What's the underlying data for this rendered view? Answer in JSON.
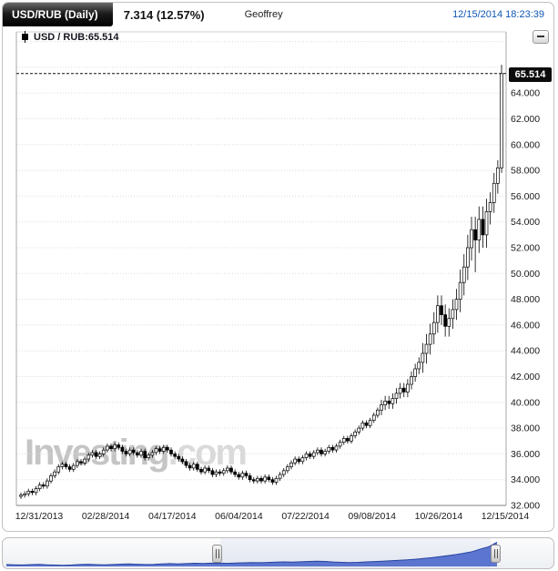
{
  "header": {
    "symbol_badge": "USD/RUB (Daily)",
    "change": "7.314 (12.57%)",
    "user": "Geoffrey",
    "timestamp": "12/15/2014 18:23:39"
  },
  "legend": {
    "label": "USD / RUB:65.514"
  },
  "price_flag": "65.514",
  "watermark": {
    "main": "Investing",
    "suffix": ".com"
  },
  "chart_data": {
    "type": "candlestick",
    "symbol": "USD/RUB",
    "interval": "Daily",
    "title": "USD/RUB Daily exchange rate",
    "last_price": 65.514,
    "change_text": "7.314 (12.57%)",
    "ylim": [
      32,
      68.7
    ],
    "grid": "horizontal-dotted",
    "legend_position": "top-left",
    "y_tick_labels": [
      "64.000",
      "62.000",
      "60.000",
      "58.000",
      "56.000",
      "54.000",
      "52.000",
      "50.000",
      "48.000",
      "46.000",
      "44.000",
      "42.000",
      "40.000",
      "38.000",
      "36.000",
      "34.000",
      "32.000"
    ],
    "x_labels": [
      "12/31/2013",
      "02/28/2014",
      "04/17/2014",
      "06/04/2014",
      "07/22/2014",
      "09/08/2014",
      "10/26/2014",
      "12/15/2014"
    ],
    "candles": [
      [
        32.7,
        33,
        32.5,
        32.8
      ],
      [
        32.8,
        33.1,
        32.6,
        32.9
      ],
      [
        32.9,
        33.3,
        32.7,
        33.1
      ],
      [
        33.1,
        33.3,
        32.8,
        33
      ],
      [
        33,
        33.5,
        32.8,
        33.3
      ],
      [
        33.3,
        33.8,
        33.1,
        33.6
      ],
      [
        33.6,
        33.8,
        33.3,
        33.5
      ],
      [
        33.5,
        34.1,
        33.3,
        33.9
      ],
      [
        33.9,
        34.5,
        33.7,
        34.3
      ],
      [
        34.3,
        34.8,
        34.1,
        34.6
      ],
      [
        34.6,
        35.2,
        34.4,
        35
      ],
      [
        35,
        35.4,
        34.8,
        35.2
      ],
      [
        35.2,
        35.4,
        34.8,
        35
      ],
      [
        35,
        35.2,
        34.6,
        34.8
      ],
      [
        34.8,
        35.3,
        34.6,
        35.1
      ],
      [
        35.1,
        35.6,
        34.9,
        35.4
      ],
      [
        35.4,
        35.6,
        35.1,
        35.3
      ],
      [
        35.3,
        35.8,
        35.1,
        35.6
      ],
      [
        35.6,
        36.1,
        35.4,
        35.9
      ],
      [
        35.9,
        36.3,
        35.7,
        36.1
      ],
      [
        36.1,
        36.3,
        35.6,
        35.8
      ],
      [
        35.8,
        36.2,
        35.6,
        36
      ],
      [
        36,
        36.5,
        35.8,
        36.3
      ],
      [
        36.3,
        36.8,
        36.1,
        36.6
      ],
      [
        36.6,
        36.8,
        36.2,
        36.4
      ],
      [
        36.4,
        36.9,
        36.2,
        36.7
      ],
      [
        36.7,
        36.9,
        36.3,
        36.5
      ],
      [
        36.5,
        36.7,
        36,
        36.2
      ],
      [
        36.2,
        36.4,
        35.8,
        36
      ],
      [
        36,
        36.5,
        35.8,
        36.3
      ],
      [
        36.3,
        36.5,
        35.9,
        36.1
      ],
      [
        36.1,
        36.3,
        35.7,
        35.9
      ],
      [
        35.9,
        36.4,
        35.7,
        36.2
      ],
      [
        36.2,
        36.4,
        35.5,
        35.7
      ],
      [
        35.7,
        36.1,
        35.5,
        35.9
      ],
      [
        35.9,
        36.3,
        35.7,
        36.1
      ],
      [
        36.1,
        36.6,
        35.9,
        36.4
      ],
      [
        36.4,
        36.6,
        36,
        36.2
      ],
      [
        36.2,
        36.7,
        36,
        36.5
      ],
      [
        36.5,
        36.7,
        36.1,
        36.3
      ],
      [
        36.3,
        36.5,
        35.8,
        36
      ],
      [
        36,
        36.2,
        35.6,
        35.8
      ],
      [
        35.8,
        36,
        35.4,
        35.6
      ],
      [
        35.6,
        35.8,
        35.2,
        35.4
      ],
      [
        35.4,
        35.6,
        34.9,
        35.1
      ],
      [
        35.1,
        35.3,
        34.7,
        34.9
      ],
      [
        34.9,
        35.4,
        34.7,
        35.2
      ],
      [
        35.2,
        35.4,
        34.6,
        34.8
      ],
      [
        34.8,
        35,
        34.4,
        34.6
      ],
      [
        34.6,
        35.1,
        34.4,
        34.9
      ],
      [
        34.9,
        35.1,
        34.5,
        34.7
      ],
      [
        34.7,
        34.9,
        34.2,
        34.4
      ],
      [
        34.4,
        34.8,
        34.2,
        34.6
      ],
      [
        34.6,
        34.8,
        34.3,
        34.5
      ],
      [
        34.5,
        34.9,
        34.3,
        34.7
      ],
      [
        34.7,
        35.1,
        34.5,
        34.9
      ],
      [
        34.9,
        35.1,
        34.4,
        34.6
      ],
      [
        34.6,
        34.8,
        34.2,
        34.4
      ],
      [
        34.4,
        34.6,
        34,
        34.2
      ],
      [
        34.2,
        34.7,
        34,
        34.5
      ],
      [
        34.5,
        34.7,
        34.1,
        34.3
      ],
      [
        34.3,
        34.5,
        33.8,
        34
      ],
      [
        34,
        34.2,
        33.7,
        33.9
      ],
      [
        33.9,
        34.3,
        33.7,
        34.1
      ],
      [
        34.1,
        34.3,
        33.7,
        33.9
      ],
      [
        33.9,
        34.4,
        33.7,
        34.2
      ],
      [
        34.2,
        34.4,
        33.8,
        34
      ],
      [
        34,
        34.2,
        33.6,
        33.8
      ],
      [
        33.8,
        34.3,
        33.6,
        34.1
      ],
      [
        34.1,
        34.6,
        33.9,
        34.4
      ],
      [
        34.4,
        34.9,
        34.2,
        34.7
      ],
      [
        34.7,
        35.2,
        34.5,
        35
      ],
      [
        35,
        35.5,
        34.8,
        35.3
      ],
      [
        35.3,
        35.8,
        35.1,
        35.6
      ],
      [
        35.6,
        35.8,
        35.2,
        35.4
      ],
      [
        35.4,
        35.9,
        35.2,
        35.7
      ],
      [
        35.7,
        36.2,
        35.5,
        36
      ],
      [
        36,
        36.2,
        35.6,
        35.8
      ],
      [
        35.8,
        36.3,
        35.6,
        36.1
      ],
      [
        36.1,
        36.5,
        35.9,
        36.3
      ],
      [
        36.3,
        36.5,
        35.8,
        36
      ],
      [
        36,
        36.4,
        35.8,
        36.2
      ],
      [
        36.2,
        36.7,
        36,
        36.5
      ],
      [
        36.5,
        36.7,
        36.1,
        36.3
      ],
      [
        36.3,
        36.8,
        36.1,
        36.6
      ],
      [
        36.6,
        37.1,
        36.4,
        36.9
      ],
      [
        36.9,
        37.4,
        36.7,
        37.2
      ],
      [
        37.2,
        37.4,
        36.8,
        37
      ],
      [
        37,
        37.6,
        36.8,
        37.4
      ],
      [
        37.4,
        37.9,
        37.2,
        37.7
      ],
      [
        37.7,
        38.2,
        37.5,
        38
      ],
      [
        38,
        38.6,
        37.8,
        38.4
      ],
      [
        38.4,
        38.6,
        38,
        38.2
      ],
      [
        38.2,
        38.8,
        38,
        38.6
      ],
      [
        38.6,
        39.2,
        38.4,
        39
      ],
      [
        39,
        39.6,
        38.8,
        39.4
      ],
      [
        39.4,
        40.2,
        39,
        39.8
      ],
      [
        39.8,
        40.5,
        39.4,
        40.1
      ],
      [
        40.1,
        40.5,
        39.5,
        39.9
      ],
      [
        39.9,
        40.7,
        39.5,
        40.3
      ],
      [
        40.3,
        41.1,
        39.9,
        40.7
      ],
      [
        40.7,
        41.5,
        40.3,
        41.1
      ],
      [
        41.1,
        41.5,
        40.4,
        40.8
      ],
      [
        40.8,
        41.8,
        40.4,
        41.4
      ],
      [
        41.4,
        42.4,
        41,
        42
      ],
      [
        42,
        43,
        41.6,
        42.6
      ],
      [
        42.6,
        43.5,
        42.2,
        43.1
      ],
      [
        43.1,
        44.6,
        42.3,
        43.8
      ],
      [
        43.8,
        45.3,
        43,
        44.5
      ],
      [
        44.5,
        46.1,
        43.7,
        45.3
      ],
      [
        45.3,
        47,
        44.5,
        46.2
      ],
      [
        46.2,
        48.3,
        45.4,
        47.5
      ],
      [
        47.5,
        48.3,
        46,
        46.8
      ],
      [
        46.8,
        47.6,
        45.1,
        45.9
      ],
      [
        45.9,
        47.3,
        45.1,
        46.5
      ],
      [
        46.5,
        48,
        45.7,
        47.2
      ],
      [
        47.2,
        48.8,
        46.4,
        48
      ],
      [
        48,
        50.3,
        47,
        49.3
      ],
      [
        49.3,
        51.5,
        48.3,
        50.5
      ],
      [
        50.5,
        53,
        49.5,
        52
      ],
      [
        52,
        54.4,
        51,
        53.4
      ],
      [
        53.4,
        54.4,
        50.1,
        52.6
      ],
      [
        52.6,
        55.2,
        51.6,
        54.2
      ],
      [
        54.2,
        55.2,
        52,
        53
      ],
      [
        53,
        55.8,
        52,
        54.8
      ],
      [
        54.8,
        56.3,
        53.8,
        55.5
      ],
      [
        55.5,
        57.8,
        54.7,
        57
      ],
      [
        57,
        58.8,
        56.2,
        58.2
      ],
      [
        58.2,
        66.2,
        57.8,
        65.514
      ]
    ],
    "navigator": {
      "type": "area",
      "values": [
        31,
        30.5,
        30.2,
        30.8,
        31.2,
        30.6,
        30.1,
        29.8,
        30.3,
        30.9,
        31.4,
        30.8,
        30.4,
        30.9,
        31.5,
        32,
        31.4,
        30.9,
        31.3,
        31.8,
        32.3,
        31.9,
        32.4,
        32.9,
        32.5,
        33,
        33.4,
        32.8,
        33.2,
        33.6,
        34.1,
        33.7,
        34.2,
        34.6,
        35.1,
        34.7,
        35.2,
        35.7,
        36.2,
        35.8,
        34.9,
        34.3,
        33.9,
        34.4,
        35,
        35.6,
        36.1,
        36.7,
        37.4,
        38.2,
        39.1,
        40.2,
        41.5,
        43,
        44.8,
        46.5,
        48.5,
        51,
        55,
        58.5,
        65.5
      ]
    },
    "colors": {
      "candle_outline": "#000000",
      "down_fill": "#000000",
      "up_fill": "#ffffff",
      "navigator_fill": "#4d68cc",
      "navigator_line": "#23409e",
      "timestamp_blue": "#0e57b5",
      "price_flag_bg": "#0c0c0c"
    }
  }
}
